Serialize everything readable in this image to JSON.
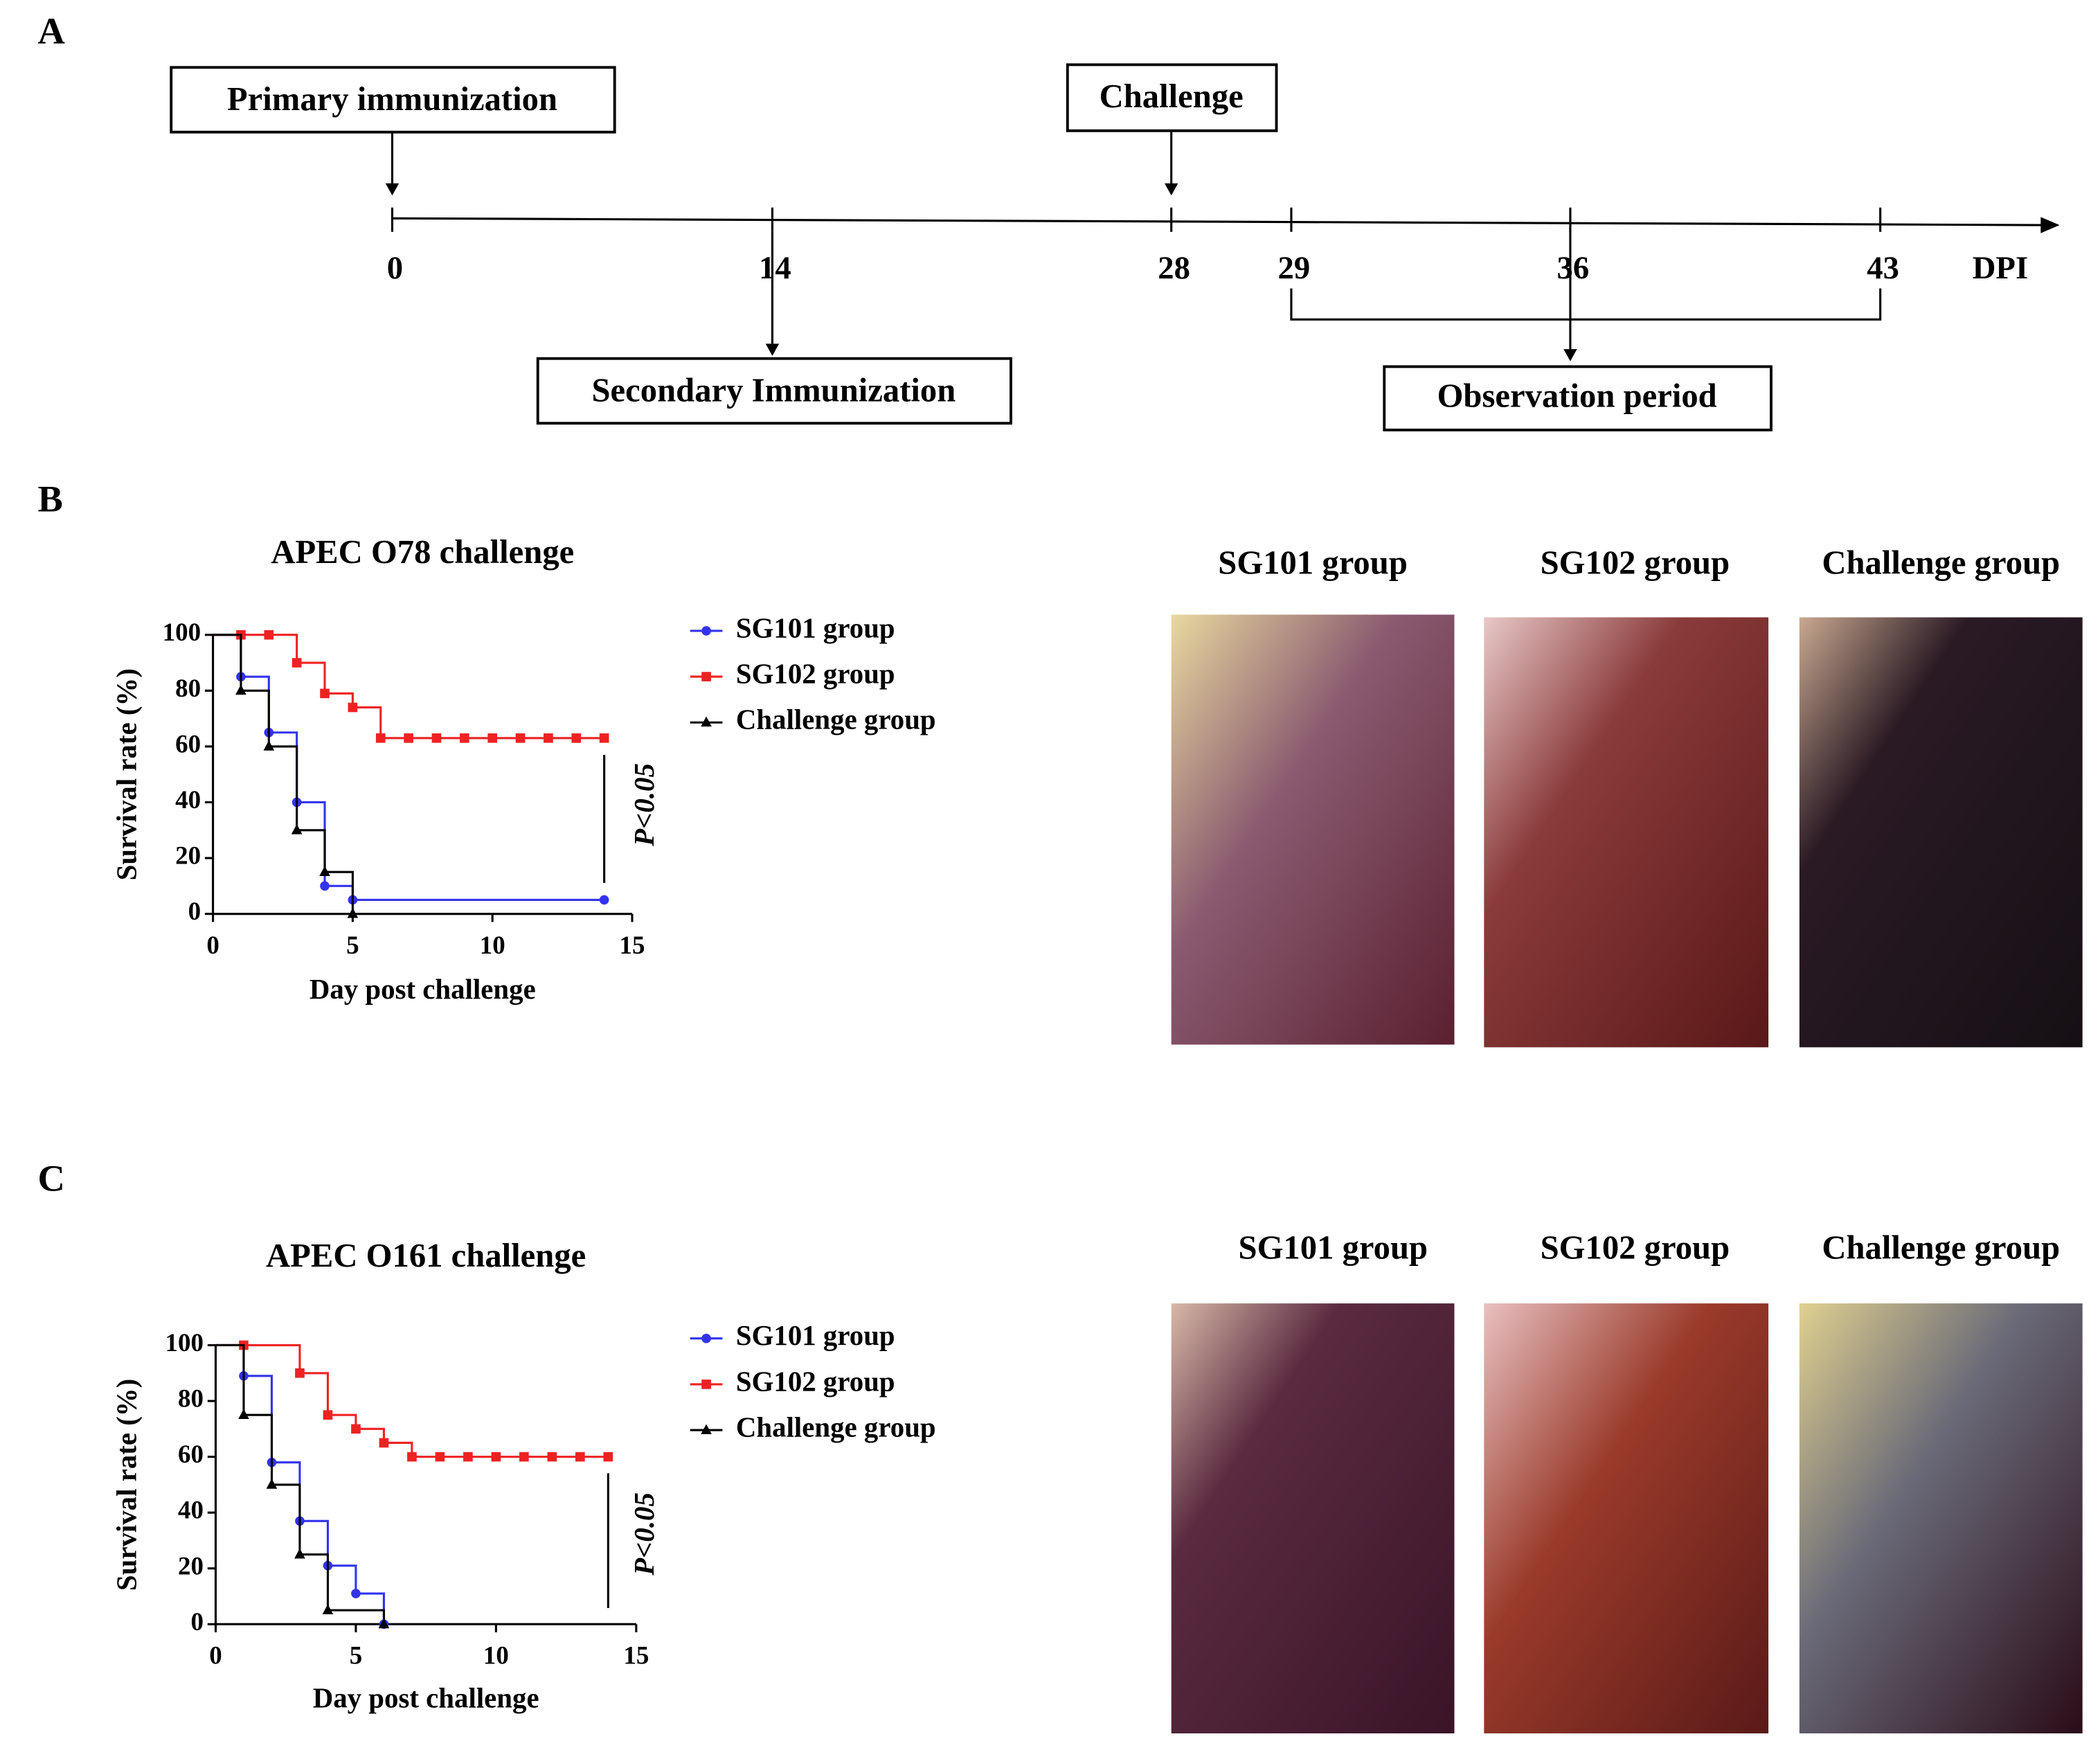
{
  "panel_labels": [
    "A",
    "B",
    "C"
  ],
  "timeline": {
    "ticks": [
      "0",
      "14",
      "28",
      "29",
      "36",
      "43"
    ],
    "unit": "DPI",
    "events": [
      "Primary immunization",
      "Challenge",
      "Secondary Immunization",
      "Observation period"
    ]
  },
  "chart_data": [
    {
      "type": "step",
      "title": "APEC O78 challenge",
      "x_label": "Day post challenge",
      "y_label": "Survival rate (%)",
      "annotation": "P<0.05",
      "xlim": [
        0,
        15
      ],
      "xticks": [
        0,
        5,
        10,
        15
      ],
      "ylim": [
        0,
        100
      ],
      "yticks": [
        0,
        20,
        40,
        60,
        80,
        100
      ],
      "series": [
        {
          "name": "SG101 group",
          "color": "#3333ee",
          "marker": "circle",
          "x": [
            0,
            1,
            2,
            3,
            4,
            5,
            14
          ],
          "values": [
            100,
            85,
            65,
            40,
            10,
            5,
            5
          ]
        },
        {
          "name": "SG102 group",
          "color": "#ee2222",
          "marker": "square",
          "x": [
            0,
            1,
            2,
            3,
            4,
            5,
            6,
            7,
            8,
            9,
            10,
            11,
            12,
            13,
            14
          ],
          "values": [
            100,
            100,
            100,
            90,
            79,
            74,
            63,
            63,
            63,
            63,
            63,
            63,
            63,
            63,
            63
          ]
        },
        {
          "name": "Challenge group",
          "color": "#000000",
          "marker": "triangle",
          "x": [
            0,
            1,
            2,
            3,
            4,
            5
          ],
          "values": [
            100,
            80,
            60,
            30,
            15,
            0
          ]
        }
      ],
      "photos": [
        "SG101 group",
        "SG102 group",
        "Challenge group"
      ]
    },
    {
      "type": "step",
      "title": "APEC O161 challenge",
      "x_label": "Day post challenge",
      "y_label": "Survival rate (%)",
      "annotation": "P<0.05",
      "xlim": [
        0,
        15
      ],
      "xticks": [
        0,
        5,
        10,
        15
      ],
      "ylim": [
        0,
        100
      ],
      "yticks": [
        0,
        20,
        40,
        60,
        80,
        100
      ],
      "series": [
        {
          "name": "SG101 group",
          "color": "#3333ee",
          "marker": "circle",
          "x": [
            0,
            1,
            2,
            3,
            4,
            5,
            6
          ],
          "values": [
            100,
            89,
            58,
            37,
            21,
            11,
            0
          ]
        },
        {
          "name": "SG102 group",
          "color": "#ee2222",
          "marker": "square",
          "x": [
            0,
            1,
            3,
            4,
            5,
            6,
            7,
            8,
            9,
            10,
            11,
            12,
            13,
            14
          ],
          "values": [
            100,
            100,
            90,
            75,
            70,
            65,
            60,
            60,
            60,
            60,
            60,
            60,
            60,
            60
          ]
        },
        {
          "name": "Challenge group",
          "color": "#000000",
          "marker": "triangle",
          "x": [
            0,
            1,
            2,
            3,
            4,
            6
          ],
          "values": [
            100,
            75,
            50,
            25,
            5,
            0
          ]
        }
      ],
      "photos": [
        "SG101 group",
        "SG102 group",
        "Challenge group"
      ]
    }
  ]
}
